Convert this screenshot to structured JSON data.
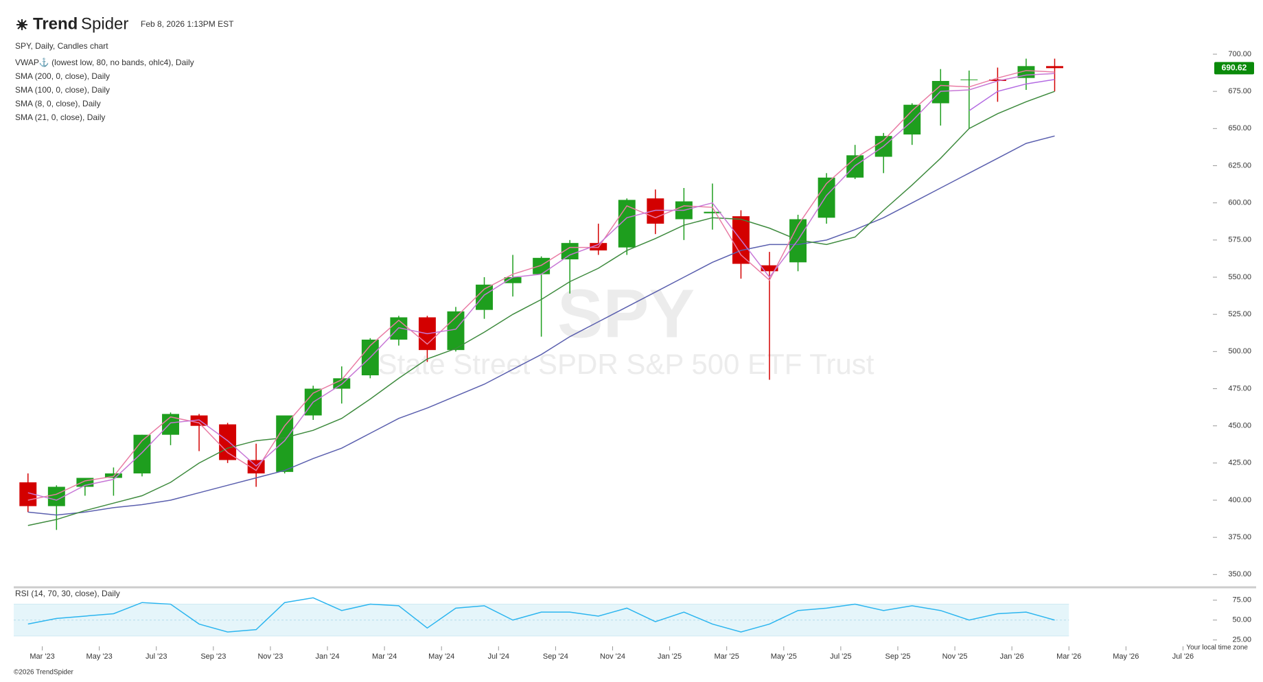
{
  "header": {
    "logo_bold": "Trend",
    "logo_light": "Spider",
    "timestamp": "Feb 8, 2026 1:13PM EST"
  },
  "footer": {
    "timezone_note": "Your local time zone",
    "copyright": "©2026 TrendSpider"
  },
  "chart_data": {
    "type": "candlestick",
    "title": "SPY, Daily, Candles chart",
    "watermark": "SPY",
    "watermark_subtitle": "State Street SPDR S&P 500 ETF Trust",
    "x": [
      "2023-02",
      "2023-03",
      "2023-04",
      "2023-05",
      "2023-06",
      "2023-07",
      "2023-08",
      "2023-09",
      "2023-10",
      "2023-11",
      "2023-12",
      "2024-01",
      "2024-02",
      "2024-03",
      "2024-04",
      "2024-05",
      "2024-06",
      "2024-07",
      "2024-08",
      "2024-09",
      "2024-10",
      "2024-11",
      "2024-12",
      "2025-01",
      "2025-02",
      "2025-03",
      "2025-04",
      "2025-05",
      "2025-06",
      "2025-07",
      "2025-08",
      "2025-09",
      "2025-10",
      "2025-11",
      "2025-12",
      "2026-01",
      "2026-02"
    ],
    "open": [
      412,
      396,
      409,
      415,
      418,
      444,
      457,
      451,
      427,
      419,
      457,
      475,
      484,
      508,
      523,
      501,
      528,
      546,
      552,
      562,
      573,
      570,
      603,
      589,
      593,
      591,
      558,
      560,
      590,
      617,
      631,
      646,
      667,
      683,
      683,
      684,
      692
    ],
    "high": [
      418,
      410,
      415,
      422,
      444,
      459,
      458,
      452,
      438,
      457,
      477,
      490,
      509,
      524,
      524,
      530,
      550,
      565,
      564,
      575,
      586,
      603,
      609,
      610,
      613,
      595,
      567,
      592,
      620,
      639,
      647,
      667,
      690,
      689,
      691,
      697,
      697
    ],
    "low": [
      392,
      380,
      403,
      403,
      416,
      437,
      433,
      425,
      409,
      418,
      454,
      465,
      482,
      504,
      493,
      500,
      522,
      537,
      510,
      539,
      565,
      565,
      579,
      575,
      582,
      549,
      481,
      554,
      586,
      616,
      620,
      639,
      652,
      650,
      668,
      676,
      675
    ],
    "close": [
      396,
      409,
      415,
      418,
      444,
      458,
      450,
      427,
      418,
      457,
      475,
      482,
      508,
      523,
      501,
      527,
      545,
      550,
      563,
      573,
      568,
      602,
      586,
      601,
      594,
      559,
      554,
      589,
      617,
      632,
      645,
      666,
      682,
      683,
      682,
      692,
      690.62
    ],
    "up_color": "#1e9e1e",
    "down_color": "#d30000",
    "price_label_color": "#0a8a0a",
    "series": [
      {
        "name": "VWAP⚓ (lowest low, 80, no bands, ohlc4), Daily",
        "color": "#b36ae2",
        "values": [
          null,
          null,
          null,
          null,
          null,
          null,
          null,
          null,
          null,
          null,
          null,
          null,
          null,
          null,
          null,
          null,
          null,
          null,
          null,
          null,
          null,
          null,
          null,
          null,
          null,
          null,
          null,
          null,
          null,
          null,
          null,
          null,
          null,
          662,
          675,
          680,
          683
        ]
      },
      {
        "name": "SMA (200, 0, close), Daily",
        "color": "#5a5fae",
        "values": [
          392,
          390,
          392,
          395,
          397,
          400,
          405,
          410,
          415,
          420,
          428,
          435,
          445,
          455,
          462,
          470,
          478,
          488,
          498,
          510,
          520,
          530,
          540,
          550,
          560,
          568,
          572,
          572,
          575,
          582,
          590,
          600,
          610,
          620,
          630,
          640,
          645
        ]
      },
      {
        "name": "SMA (100, 0, close), Daily",
        "color": "#3d8a3d",
        "values": [
          383,
          387,
          393,
          398,
          403,
          412,
          425,
          435,
          440,
          442,
          447,
          455,
          468,
          482,
          495,
          502,
          513,
          525,
          535,
          547,
          556,
          568,
          576,
          585,
          590,
          589,
          583,
          575,
          572,
          577,
          595,
          612,
          630,
          650,
          660,
          668,
          675
        ]
      },
      {
        "name": "SMA (8, 0, close), Daily",
        "color": "#e97ba4",
        "values": [
          400,
          404,
          413,
          416,
          440,
          456,
          452,
          432,
          420,
          450,
          472,
          481,
          504,
          521,
          505,
          523,
          542,
          552,
          558,
          570,
          570,
          598,
          590,
          598,
          597,
          565,
          548,
          585,
          613,
          630,
          642,
          662,
          679,
          678,
          684,
          689,
          688
        ]
      },
      {
        "name": "SMA (21, 0, close), Daily",
        "color": "#c777d6",
        "values": [
          405,
          400,
          410,
          414,
          432,
          452,
          454,
          440,
          423,
          440,
          466,
          478,
          496,
          516,
          512,
          515,
          538,
          550,
          552,
          565,
          572,
          590,
          595,
          595,
          600,
          575,
          550,
          575,
          605,
          625,
          638,
          655,
          675,
          676,
          682,
          686,
          687
        ]
      }
    ],
    "xlim": [
      "2023-02",
      "2026-08"
    ],
    "xticks": [
      {
        "value": "2023-03",
        "label": "Mar '23"
      },
      {
        "value": "2023-05",
        "label": "May '23"
      },
      {
        "value": "2023-07",
        "label": "Jul '23"
      },
      {
        "value": "2023-09",
        "label": "Sep '23"
      },
      {
        "value": "2023-11",
        "label": "Nov '23"
      },
      {
        "value": "2024-01",
        "label": "Jan '24"
      },
      {
        "value": "2024-03",
        "label": "Mar '24"
      },
      {
        "value": "2024-05",
        "label": "May '24"
      },
      {
        "value": "2024-07",
        "label": "Jul '24"
      },
      {
        "value": "2024-09",
        "label": "Sep '24"
      },
      {
        "value": "2024-11",
        "label": "Nov '24"
      },
      {
        "value": "2025-01",
        "label": "Jan '25"
      },
      {
        "value": "2025-03",
        "label": "Mar '25"
      },
      {
        "value": "2025-05",
        "label": "May '25"
      },
      {
        "value": "2025-07",
        "label": "Jul '25"
      },
      {
        "value": "2025-09",
        "label": "Sep '25"
      },
      {
        "value": "2025-11",
        "label": "Nov '25"
      },
      {
        "value": "2026-01",
        "label": "Jan '26"
      },
      {
        "value": "2026-03",
        "label": "Mar '26"
      },
      {
        "value": "2026-05",
        "label": "May '26"
      },
      {
        "value": "2026-07",
        "label": "Jul '26"
      }
    ],
    "ylim": [
      346,
      706
    ],
    "yticks": [
      {
        "value": 350,
        "label": "350.00"
      },
      {
        "value": 375,
        "label": "375.00"
      },
      {
        "value": 400,
        "label": "400.00"
      },
      {
        "value": 425,
        "label": "425.00"
      },
      {
        "value": 450,
        "label": "450.00"
      },
      {
        "value": 475,
        "label": "475.00"
      },
      {
        "value": 500,
        "label": "500.00"
      },
      {
        "value": 525,
        "label": "525.00"
      },
      {
        "value": 550,
        "label": "550.00"
      },
      {
        "value": 575,
        "label": "575.00"
      },
      {
        "value": 600,
        "label": "600.00"
      },
      {
        "value": 625,
        "label": "625.00"
      },
      {
        "value": 650,
        "label": "650.00"
      },
      {
        "value": 675,
        "label": "675.00"
      },
      {
        "value": 700,
        "label": "700.00"
      }
    ],
    "rsi": {
      "name": "RSI (14, 70, 30, close), Daily",
      "color": "#2bb5ef",
      "band_color": "#e5f5fa",
      "band": [
        30,
        70
      ],
      "ylim": [
        17,
        86
      ],
      "yticks": [
        {
          "value": 25,
          "label": "25.00"
        },
        {
          "value": 50,
          "label": "50.00"
        },
        {
          "value": 75,
          "label": "75.00"
        }
      ],
      "values": [
        45,
        52,
        55,
        58,
        72,
        70,
        45,
        35,
        38,
        72,
        78,
        62,
        70,
        68,
        40,
        65,
        68,
        50,
        60,
        60,
        55,
        65,
        48,
        60,
        45,
        35,
        45,
        62,
        65,
        70,
        62,
        68,
        62,
        50,
        58,
        60,
        50
      ]
    }
  }
}
